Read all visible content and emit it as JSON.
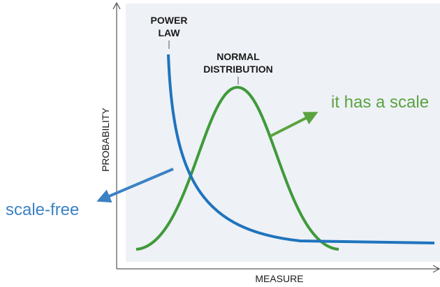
{
  "y_axis_label": "PROBABILITY",
  "x_axis_label": "MEASURE",
  "power_law_label": [
    "POWER",
    "LAW"
  ],
  "normal_label": [
    "NORMAL",
    "DISTRIBUTION"
  ],
  "annotations": {
    "scale": "it has a scale",
    "scale_free": "scale-free"
  }
}
